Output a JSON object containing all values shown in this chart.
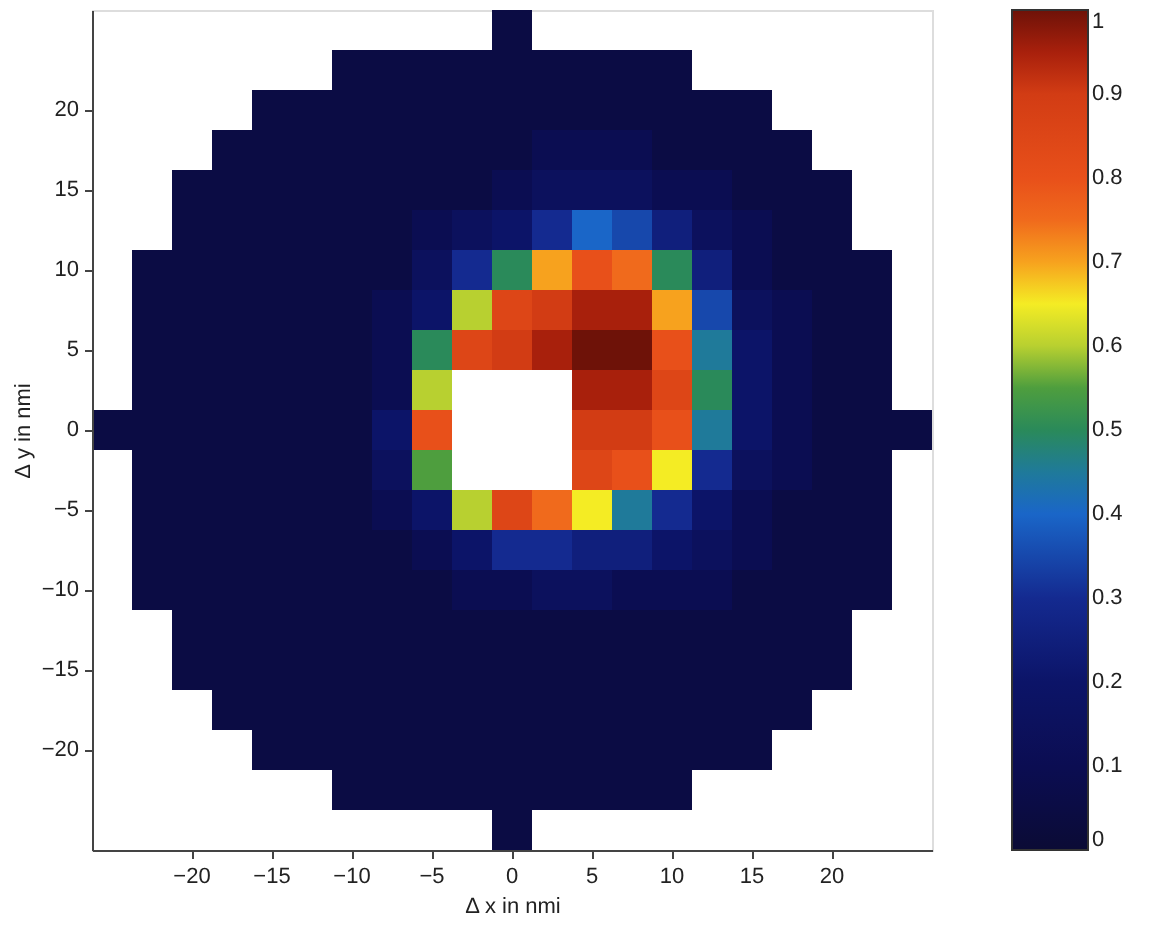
{
  "chart_data": {
    "type": "heatmap",
    "xlabel": "Δ x in nmi",
    "ylabel": "Δ y in nmi",
    "categories": [
      null,
      null,
      "−20",
      null,
      "−15",
      null,
      "−10",
      null,
      "−5",
      null,
      "0",
      null,
      "5",
      null,
      "10",
      null,
      "15",
      null,
      "20",
      null,
      null
    ],
    "y_categories": [
      null,
      null,
      "20",
      null,
      "15",
      null,
      "10",
      null,
      "5",
      null,
      "0",
      null,
      "−5",
      null,
      "−10",
      null,
      "−15",
      null,
      "−20",
      null,
      null
    ],
    "cells": [
      [
        null,
        null,
        null,
        null,
        null,
        null,
        null,
        null,
        null,
        null,
        0.05,
        null,
        null,
        null,
        null,
        null,
        null,
        null,
        null,
        null,
        null
      ],
      [
        null,
        null,
        null,
        null,
        null,
        null,
        0.05,
        0.05,
        0.05,
        0.05,
        0.05,
        0.05,
        0.05,
        0.05,
        0.05,
        null,
        null,
        null,
        null,
        null,
        null
      ],
      [
        null,
        null,
        null,
        null,
        0.05,
        0.05,
        0.05,
        0.05,
        0.05,
        0.05,
        0.05,
        0.05,
        0.05,
        0.05,
        0.05,
        0.05,
        0.05,
        null,
        null,
        null,
        null
      ],
      [
        null,
        null,
        null,
        0.05,
        0.05,
        0.05,
        0.05,
        0.05,
        0.05,
        0.05,
        0.05,
        0.1,
        0.1,
        0.1,
        0.05,
        0.05,
        0.05,
        0.05,
        null,
        null,
        null
      ],
      [
        null,
        null,
        0.05,
        0.05,
        0.05,
        0.05,
        0.05,
        0.05,
        0.05,
        0.05,
        0.1,
        0.15,
        0.15,
        0.15,
        0.1,
        0.1,
        0.05,
        0.05,
        0.05,
        null,
        null
      ],
      [
        null,
        null,
        0.05,
        0.05,
        0.05,
        0.05,
        0.05,
        0.05,
        0.1,
        0.15,
        0.2,
        0.3,
        0.4,
        0.35,
        0.25,
        0.15,
        0.1,
        0.05,
        0.05,
        null,
        null
      ],
      [
        null,
        0.05,
        0.05,
        0.05,
        0.05,
        0.05,
        0.05,
        0.05,
        0.15,
        0.3,
        0.5,
        0.7,
        0.8,
        0.75,
        0.5,
        0.25,
        0.1,
        0.05,
        0.05,
        0.05,
        null
      ],
      [
        null,
        0.05,
        0.05,
        0.05,
        0.05,
        0.05,
        0.05,
        0.1,
        0.2,
        0.6,
        0.85,
        0.9,
        0.95,
        0.95,
        0.7,
        0.35,
        0.15,
        0.1,
        0.05,
        0.05,
        null
      ],
      [
        null,
        0.05,
        0.05,
        0.05,
        0.05,
        0.05,
        0.05,
        0.1,
        0.5,
        0.85,
        0.9,
        0.95,
        1,
        1,
        0.8,
        0.45,
        0.2,
        0.1,
        0.05,
        0.05,
        null
      ],
      [
        null,
        0.05,
        0.05,
        0.05,
        0.05,
        0.05,
        0.05,
        0.1,
        0.6,
        null,
        null,
        null,
        0.95,
        0.95,
        0.85,
        0.5,
        0.2,
        0.1,
        0.05,
        0.05,
        null
      ],
      [
        0.05,
        0.05,
        0.05,
        0.05,
        0.05,
        0.05,
        0.05,
        0.2,
        0.8,
        null,
        null,
        null,
        0.9,
        0.9,
        0.8,
        0.45,
        0.2,
        0.1,
        0.05,
        0.05,
        0.05
      ],
      [
        null,
        0.05,
        0.05,
        0.05,
        0.05,
        0.05,
        0.05,
        0.15,
        0.55,
        null,
        null,
        null,
        0.85,
        0.8,
        0.65,
        0.3,
        0.15,
        0.1,
        0.05,
        0.05,
        null
      ],
      [
        null,
        0.05,
        0.05,
        0.05,
        0.05,
        0.05,
        0.05,
        0.1,
        0.2,
        0.6,
        0.85,
        0.75,
        0.65,
        0.45,
        0.3,
        0.2,
        0.1,
        0.05,
        0.05,
        0.05,
        null
      ],
      [
        null,
        0.05,
        0.05,
        0.05,
        0.05,
        0.05,
        0.05,
        0.05,
        0.1,
        0.2,
        0.3,
        0.3,
        0.25,
        0.25,
        0.2,
        0.15,
        0.1,
        0.05,
        0.05,
        0.05,
        null
      ],
      [
        null,
        0.05,
        0.05,
        0.05,
        0.05,
        0.05,
        0.05,
        0.05,
        0.05,
        0.1,
        0.1,
        0.15,
        0.15,
        0.1,
        0.1,
        0.1,
        0.05,
        0.05,
        0.05,
        0.05,
        null
      ],
      [
        null,
        null,
        0.05,
        0.05,
        0.05,
        0.05,
        0.05,
        0.05,
        0.05,
        0.05,
        0.05,
        0.05,
        0.05,
        0.05,
        0.05,
        0.05,
        0.05,
        0.05,
        0.05,
        null,
        null
      ],
      [
        null,
        null,
        0.05,
        0.05,
        0.05,
        0.05,
        0.05,
        0.05,
        0.05,
        0.05,
        0.05,
        0.05,
        0.05,
        0.05,
        0.05,
        0.05,
        0.05,
        0.05,
        0.05,
        null,
        null
      ],
      [
        null,
        null,
        null,
        0.05,
        0.05,
        0.05,
        0.05,
        0.05,
        0.05,
        0.05,
        0.05,
        0.05,
        0.05,
        0.05,
        0.05,
        0.05,
        0.05,
        0.05,
        null,
        null,
        null
      ],
      [
        null,
        null,
        null,
        null,
        0.05,
        0.05,
        0.05,
        0.05,
        0.05,
        0.05,
        0.05,
        0.05,
        0.05,
        0.05,
        0.05,
        0.05,
        0.05,
        null,
        null,
        null,
        null
      ],
      [
        null,
        null,
        null,
        null,
        null,
        null,
        0.05,
        0.05,
        0.05,
        0.05,
        0.05,
        0.05,
        0.05,
        0.05,
        0.05,
        null,
        null,
        null,
        null,
        null,
        null
      ],
      [
        null,
        null,
        null,
        null,
        null,
        null,
        null,
        null,
        null,
        null,
        0.05,
        null,
        null,
        null,
        null,
        null,
        null,
        null,
        null,
        null,
        null
      ]
    ],
    "clim": [
      0,
      1
    ],
    "cticks": [
      0,
      0.1,
      0.2,
      0.3,
      0.4,
      0.5,
      0.6,
      0.7,
      0.8,
      0.9,
      1
    ]
  }
}
